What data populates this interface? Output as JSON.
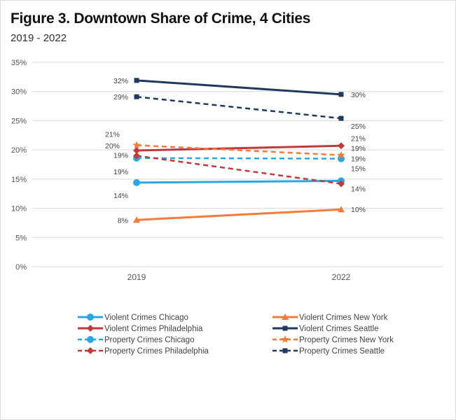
{
  "chart_data": {
    "type": "line",
    "title": "Figure 3. Downtown Share of Crime, 4 Cities",
    "subtitle": "2019 - 2022",
    "categories": [
      "2019",
      "2022"
    ],
    "ylim": [
      0,
      35
    ],
    "yticks": [
      "0%",
      "5%",
      "10%",
      "15%",
      "20%",
      "25%",
      "30%",
      "35%"
    ],
    "grid": true,
    "legend_position": "bottom",
    "series": [
      {
        "name": "Violent Crimes Chicago",
        "values": [
          14.4,
          14.7
        ],
        "labels": [
          "14%",
          "15%"
        ],
        "color": "#2aa7e0",
        "dash": false,
        "marker": "circle"
      },
      {
        "name": "Violent Crimes New York",
        "values": [
          8.0,
          9.8
        ],
        "labels": [
          "8%",
          "10%"
        ],
        "color": "#f47b3c",
        "dash": false,
        "marker": "triangle"
      },
      {
        "name": "Violent Crimes Philadelphia",
        "values": [
          19.9,
          20.7
        ],
        "labels": [
          "20%",
          "21%"
        ],
        "color": "#c0393c",
        "dash": false,
        "marker": "diamond"
      },
      {
        "name": "Violent Crimes Seattle",
        "values": [
          31.9,
          29.5
        ],
        "labels": [
          "32%",
          "30%"
        ],
        "color": "#1f3a5f",
        "dash": false,
        "marker": "square"
      },
      {
        "name": "Property Crimes Chicago",
        "values": [
          18.6,
          18.5
        ],
        "labels": [
          "19%",
          "19%"
        ],
        "color": "#2aa7e0",
        "dash": true,
        "marker": "circle"
      },
      {
        "name": "Property Crimes New York",
        "values": [
          20.8,
          19.1
        ],
        "labels": [
          "21%",
          "19%"
        ],
        "color": "#f47b3c",
        "dash": true,
        "marker": "star"
      },
      {
        "name": "Property Crimes Philadelphia",
        "values": [
          19.0,
          14.2
        ],
        "labels": [
          "19%",
          "14%"
        ],
        "color": "#c0393c",
        "dash": true,
        "marker": "diamond"
      },
      {
        "name": "Property Crimes Seattle",
        "values": [
          29.1,
          25.4
        ],
        "labels": [
          "29%",
          "25%"
        ],
        "color": "#1f3a5f",
        "dash": true,
        "marker": "square"
      }
    ]
  }
}
